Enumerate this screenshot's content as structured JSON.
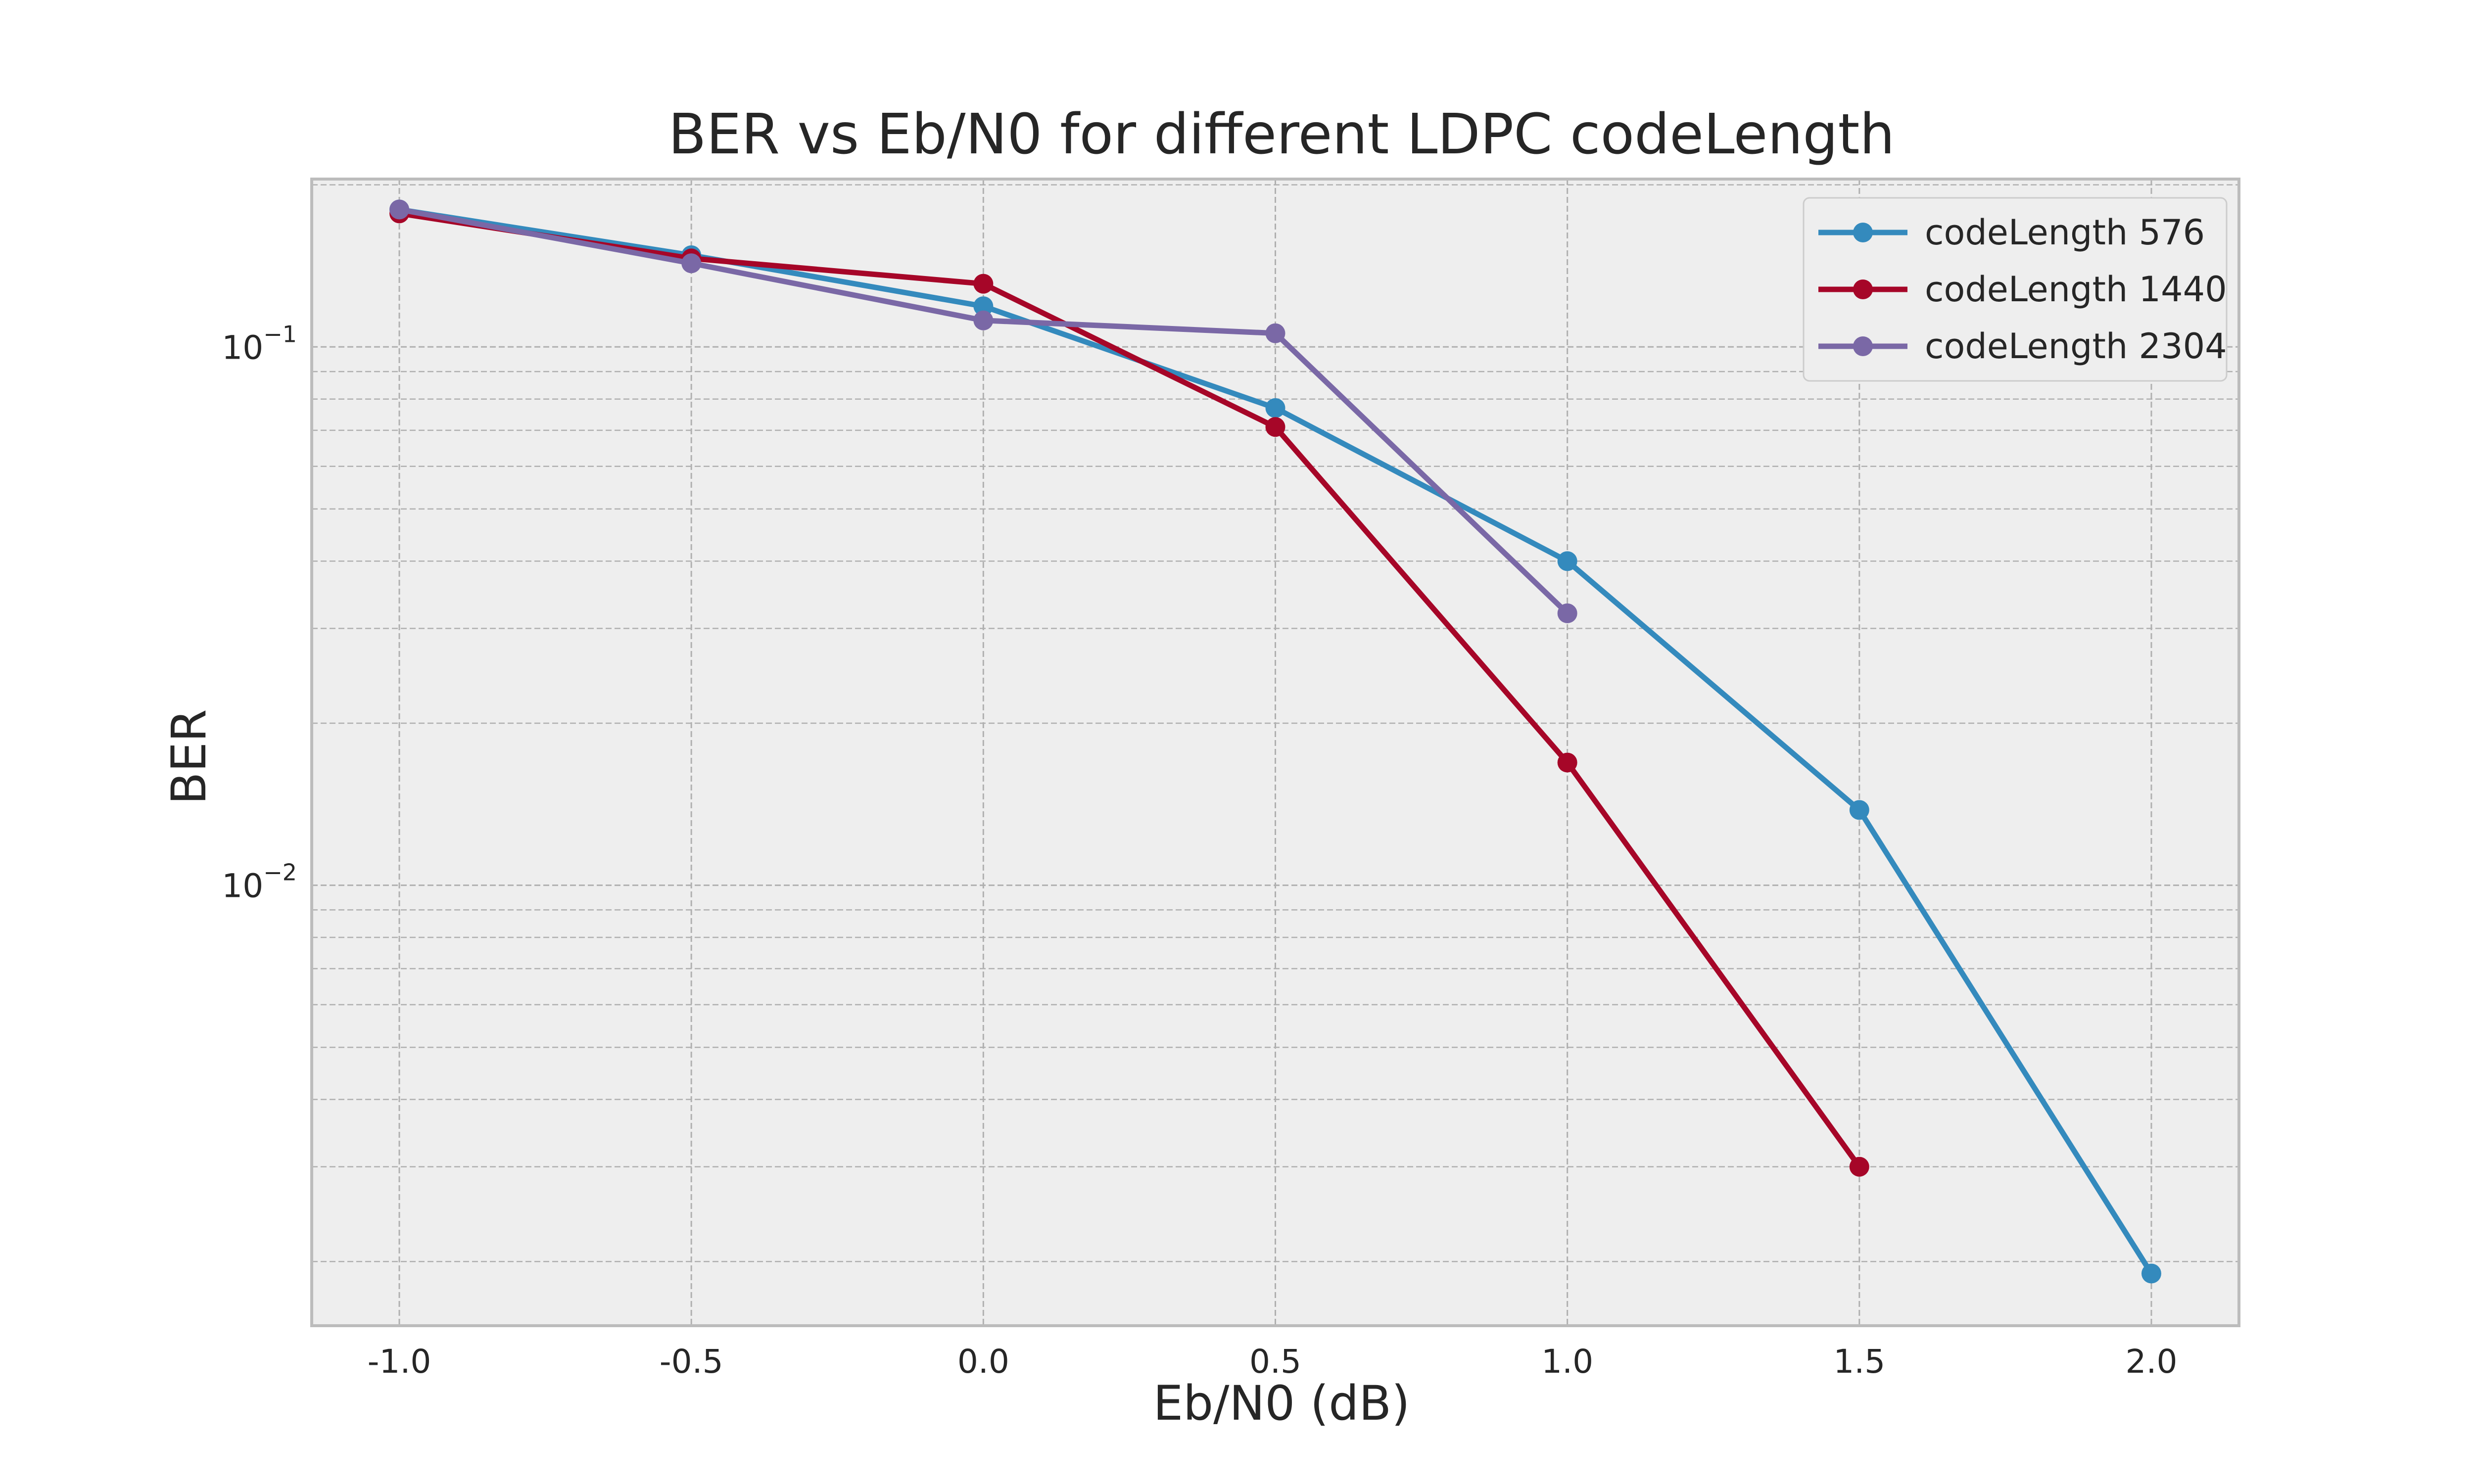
{
  "chart_data": {
    "type": "line",
    "title": "BER vs Eb/N0 for different LDPC codeLength",
    "xlabel": "Eb/N0 (dB)",
    "ylabel": "BER",
    "yscale": "log",
    "xlim": [
      -1.15,
      2.15
    ],
    "ylim": [
      0.00152,
      0.205
    ],
    "x_ticks": [
      -1.0,
      -0.5,
      0.0,
      0.5,
      1.0,
      1.5,
      2.0
    ],
    "x_tick_labels": [
      "-1.0",
      "-0.5",
      "0.0",
      "0.5",
      "1.0",
      "1.5",
      "2.0"
    ],
    "y_ticks": [
      {
        "value": 0.1,
        "base": "10",
        "exponent": "−1"
      },
      {
        "value": 0.01,
        "base": "10",
        "exponent": "−2"
      }
    ],
    "grid": true,
    "legend_position": "top-right",
    "series": [
      {
        "name": "codeLength 576",
        "color": "#348ABD",
        "x": [
          -1.0,
          -0.5,
          0.0,
          0.5,
          1.0,
          1.5,
          2.0
        ],
        "y": [
          0.18,
          0.148,
          0.119,
          0.077,
          0.04,
          0.0138,
          0.0019
        ]
      },
      {
        "name": "codeLength 1440",
        "color": "#A60628",
        "x": [
          -1.0,
          -0.5,
          0.0,
          0.5,
          1.0,
          1.5
        ],
        "y": [
          0.177,
          0.146,
          0.131,
          0.071,
          0.0169,
          0.003
        ]
      },
      {
        "name": "codeLength 2304",
        "color": "#7A68A6",
        "x": [
          -1.0,
          -0.5,
          0.0,
          0.5,
          1.0
        ],
        "y": [
          0.18,
          0.143,
          0.112,
          0.106,
          0.032
        ]
      }
    ]
  }
}
